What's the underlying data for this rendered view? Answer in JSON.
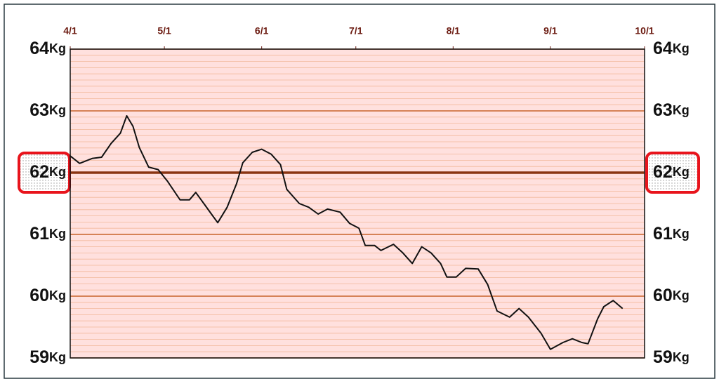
{
  "chart_data": {
    "type": "line",
    "x": [
      0,
      3,
      7,
      10,
      13,
      16,
      18,
      20,
      22,
      25,
      28,
      31,
      35,
      38,
      40,
      43,
      45,
      47,
      50,
      53,
      55,
      58,
      61,
      64,
      67,
      69,
      73,
      76,
      79,
      82,
      86,
      89,
      92,
      94,
      97,
      99,
      103,
      106,
      109,
      112,
      115,
      118,
      120,
      123,
      126,
      130,
      133,
      136,
      140,
      143,
      146,
      150,
      153,
      157,
      160,
      163,
      165,
      168,
      170,
      173,
      176
    ],
    "values": [
      62.27,
      62.15,
      62.23,
      62.25,
      62.47,
      62.64,
      62.92,
      62.75,
      62.41,
      62.09,
      62.05,
      61.86,
      61.56,
      61.56,
      61.68,
      61.47,
      61.33,
      61.19,
      61.44,
      61.82,
      62.16,
      62.33,
      62.38,
      62.3,
      62.13,
      61.73,
      61.5,
      61.44,
      61.33,
      61.41,
      61.36,
      61.18,
      61.1,
      60.82,
      60.82,
      60.74,
      60.84,
      60.7,
      60.53,
      60.8,
      60.7,
      60.53,
      60.31,
      60.31,
      60.45,
      60.44,
      60.19,
      59.76,
      59.66,
      59.8,
      59.66,
      59.4,
      59.14,
      59.25,
      59.31,
      59.25,
      59.23,
      59.63,
      59.83,
      59.93,
      59.8
    ],
    "color": "#111111",
    "xlim": [
      0,
      183
    ],
    "xticks": [
      {
        "value": 0,
        "label": "4/1"
      },
      {
        "value": 30,
        "label": "5/1"
      },
      {
        "value": 61,
        "label": "6/1"
      },
      {
        "value": 91,
        "label": "7/1"
      },
      {
        "value": 122,
        "label": "8/1"
      },
      {
        "value": 153,
        "label": "9/1"
      },
      {
        "value": 183,
        "label": "10/1"
      }
    ],
    "ylim": [
      59,
      64
    ],
    "yticks": [
      59,
      60,
      61,
      62,
      63,
      64
    ],
    "y_unit": "Kg",
    "target": 62,
    "grid": true,
    "minor_grid_step": 0.1
  }
}
